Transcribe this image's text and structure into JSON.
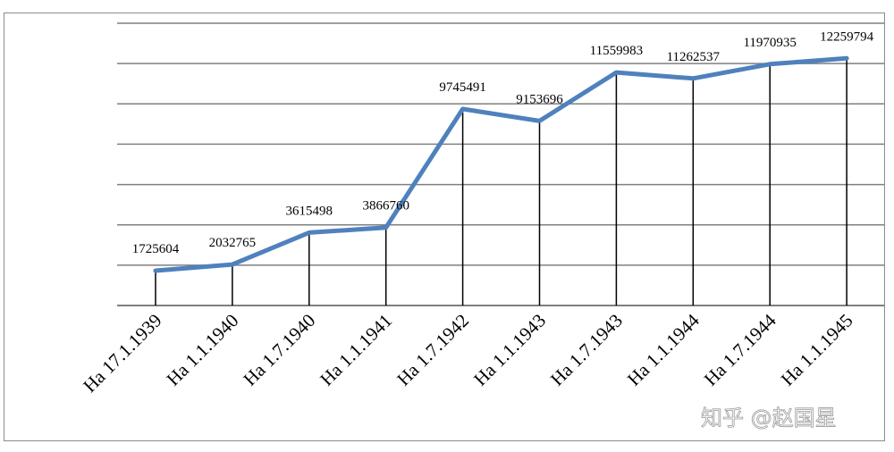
{
  "chart_data": {
    "type": "line",
    "title": "",
    "xlabel": "",
    "ylabel": "",
    "categories": [
      "Ha 17.1.1939",
      "Ha 1.1.1940",
      "Ha 1.7.1940",
      "Ha 1.1.1941",
      "Ha 1.7.1942",
      "Ha 1.1.1943",
      "Ha 1.7.1943",
      "Ha 1.1.1944",
      "Ha 1.7.1944",
      "Ha 1.1.1945"
    ],
    "series": [
      {
        "values": [
          1725604,
          2032765,
          3615498,
          3866760,
          9745491,
          9153696,
          11559983,
          11262537,
          11970935,
          12259794
        ],
        "data_labels": [
          "1725604",
          "2032765",
          "3615498",
          "3866760",
          "9745491",
          "9153696",
          "11559983",
          "11262537",
          "11970935",
          "12259794"
        ],
        "color": "#4f81bd"
      }
    ],
    "ylim": [
      0,
      14000000
    ],
    "gridlines": [
      2000000,
      4000000,
      6000000,
      8000000,
      10000000,
      12000000,
      14000000
    ],
    "grid": true,
    "drop_lines": true,
    "legend": "none",
    "axis_color": "#7f7f7f",
    "drop_line_color": "#000000"
  },
  "watermark": {
    "text": "知乎 @赵国星"
  }
}
